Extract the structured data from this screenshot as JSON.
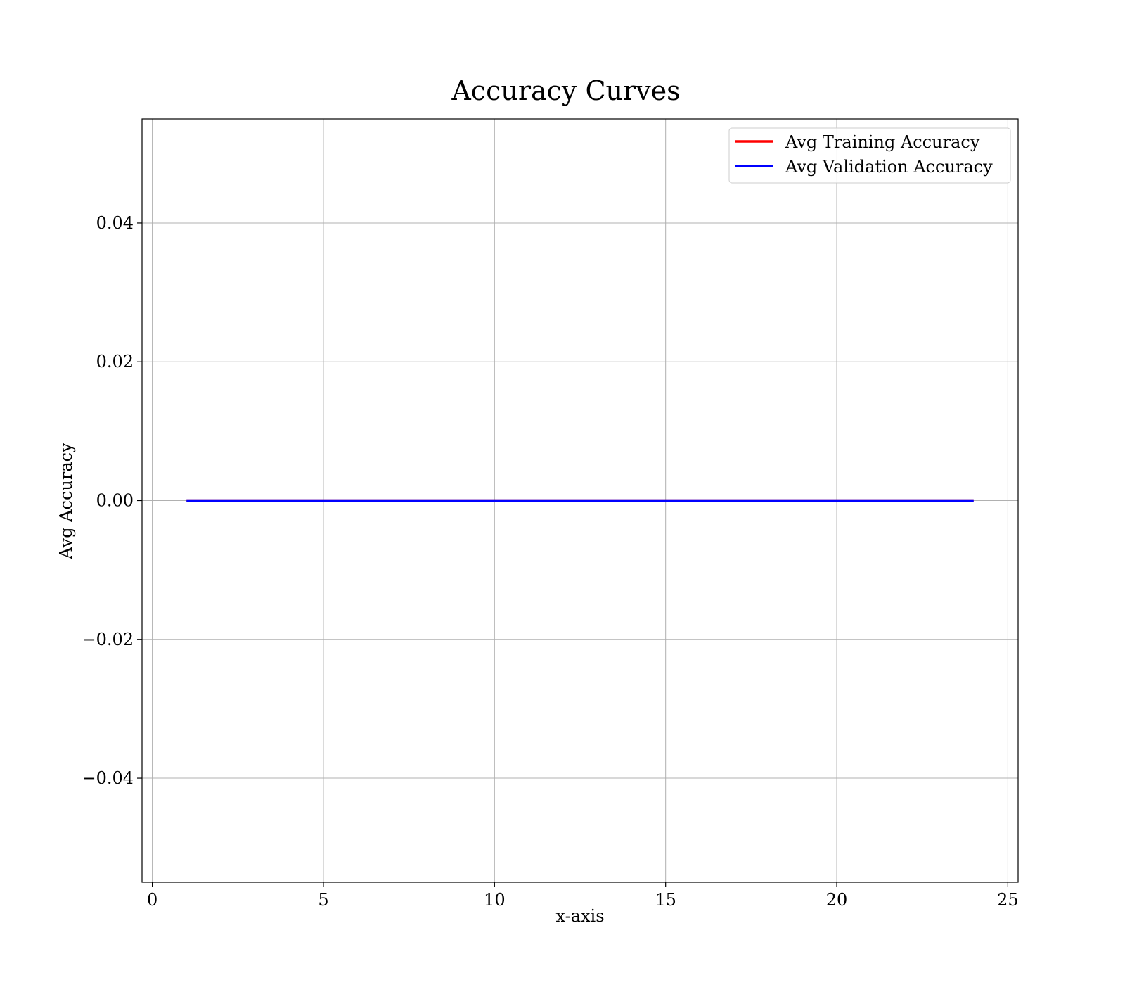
{
  "chart_data": {
    "type": "line",
    "title": "Accuracy Curves",
    "xlabel": "x-axis",
    "ylabel": "Avg Accuracy",
    "xlim": [
      -0.3,
      25.3
    ],
    "ylim": [
      -0.055,
      0.055
    ],
    "xticks": [
      0,
      5,
      10,
      15,
      20,
      25
    ],
    "xtick_labels": [
      "0",
      "5",
      "10",
      "15",
      "20",
      "25"
    ],
    "yticks": [
      -0.04,
      -0.02,
      0.0,
      0.02,
      0.04
    ],
    "ytick_labels": [
      "−0.04",
      "−0.02",
      "0.00",
      "0.02",
      "0.04"
    ],
    "grid": true,
    "legend_position": "top-right",
    "x": [
      1,
      2,
      3,
      4,
      5,
      6,
      7,
      8,
      9,
      10,
      11,
      12,
      13,
      14,
      15,
      16,
      17,
      18,
      19,
      20,
      21,
      22,
      23,
      24
    ],
    "series": [
      {
        "name": "Avg Training Accuracy",
        "color": "#ff0000",
        "values": [
          0,
          0,
          0,
          0,
          0,
          0,
          0,
          0,
          0,
          0,
          0,
          0,
          0,
          0,
          0,
          0,
          0,
          0,
          0,
          0,
          0,
          0,
          0,
          0
        ]
      },
      {
        "name": "Avg Validation Accuracy",
        "color": "#0000ff",
        "values": [
          0,
          0,
          0,
          0,
          0,
          0,
          0,
          0,
          0,
          0,
          0,
          0,
          0,
          0,
          0,
          0,
          0,
          0,
          0,
          0,
          0,
          0,
          0,
          0
        ]
      }
    ]
  }
}
